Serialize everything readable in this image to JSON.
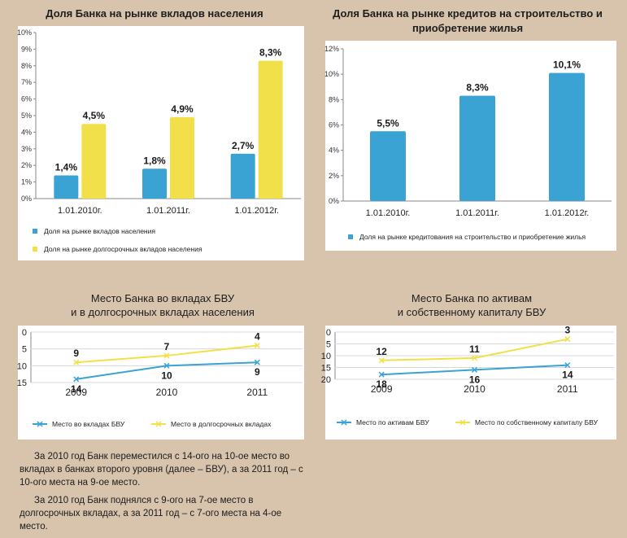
{
  "titles": {
    "t1": "Доля Банка на рынке вкладов населения",
    "t2a": "Доля Банка на рынке кредитов на строительство и",
    "t2b": "приобретение жилья",
    "t3a": "Место Банка во вкладах БВУ",
    "t3b": "и в долгосрочных вкладах населения",
    "t4a": "Место Банка по активам",
    "t4b": "и собственному капиталу БВУ"
  },
  "text": {
    "p1": "За 2010 год Банк переместился с 14-ого на 10-ое место во вкладах в банках второго уровня (далее – БВУ), а за 2011 год – с 10-ого места на 9-ое место.",
    "p2": "За 2010 год Банк поднялся с 9-ого на 7-ое место в долгосрочных вкладах, а за 2011 год – с 7-ого места на 4-ое место."
  },
  "colors": {
    "blue": "#3aa3d4",
    "yellow": "#f2e04a",
    "bg": "#d8c3ad",
    "panel": "#ffffff"
  },
  "chart_data": [
    {
      "type": "bar",
      "categories": [
        "1.01.2010г.",
        "1.01.2011г.",
        "1.01.2012г."
      ],
      "series": [
        {
          "name": "Доля на рынке вкладов населения",
          "values": [
            1.4,
            1.8,
            2.7
          ],
          "labels": [
            "1,4%",
            "1,8%",
            "2,7%"
          ],
          "color": "#3aa3d4"
        },
        {
          "name": "Доля на рынке долгосрочных вкладов населения",
          "values": [
            4.5,
            4.9,
            8.3
          ],
          "labels": [
            "4,5%",
            "4,9%",
            "8,3%"
          ],
          "color": "#f2e04a"
        }
      ],
      "yticks": [
        "0%",
        "1%",
        "2%",
        "3%",
        "4%",
        "5%",
        "6%",
        "7%",
        "8%",
        "9%",
        "10%"
      ],
      "ylim": [
        0,
        10
      ],
      "legend": "bottom-left"
    },
    {
      "type": "bar",
      "categories": [
        "1.01.2010г.",
        "1.01.2011г.",
        "1.01.2012г."
      ],
      "series": [
        {
          "name": "Доля на рынке кредитования на строительство и приобретение жилья",
          "values": [
            5.5,
            8.3,
            10.1
          ],
          "labels": [
            "5,5%",
            "8,3%",
            "10,1%"
          ],
          "color": "#3aa3d4"
        }
      ],
      "yticks": [
        "0%",
        "2%",
        "4%",
        "6%",
        "8%",
        "10%",
        "12%"
      ],
      "ylim": [
        0,
        12
      ],
      "legend": "bottom"
    },
    {
      "type": "line",
      "x": [
        "2009",
        "2010",
        "2011"
      ],
      "series": [
        {
          "name": "Место во вкладах БВУ",
          "values": [
            14,
            10,
            9
          ],
          "color": "#3aa3d4"
        },
        {
          "name": "Место в долгосрочных вкладах",
          "values": [
            9,
            7,
            4
          ],
          "color": "#f2e04a"
        }
      ],
      "yticks": [
        "0",
        "5",
        "10",
        "15"
      ],
      "ylim": [
        0,
        15
      ],
      "inverted": true,
      "legend": "bottom"
    },
    {
      "type": "line",
      "x": [
        "2009",
        "2010",
        "2011"
      ],
      "series": [
        {
          "name": "Место по активам БВУ",
          "values": [
            18,
            16,
            14
          ],
          "color": "#3aa3d4"
        },
        {
          "name": "Место по собственному капиталу БВУ",
          "values": [
            12,
            11,
            3
          ],
          "color": "#f2e04a"
        }
      ],
      "yticks": [
        "0",
        "5",
        "10",
        "15",
        "20"
      ],
      "ylim": [
        0,
        20
      ],
      "inverted": true,
      "legend": "bottom"
    }
  ]
}
